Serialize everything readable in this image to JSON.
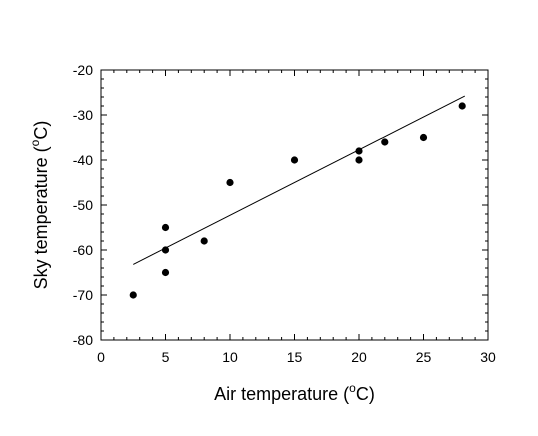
{
  "chart_data": {
    "type": "scatter",
    "title": "",
    "xlabel": "Air temperature (",
    "xlabel_sup": "o",
    "xlabel_unit": "C)",
    "ylabel": "Sky temperature (",
    "ylabel_sup": "o",
    "ylabel_unit": "C)",
    "xlim": [
      0,
      30
    ],
    "ylim": [
      -80,
      -20
    ],
    "x_ticks": [
      0,
      5,
      10,
      15,
      20,
      25,
      30
    ],
    "y_ticks": [
      -80,
      -70,
      -60,
      -50,
      -40,
      -30,
      -20
    ],
    "grid": false,
    "series": [
      {
        "points": [
          {
            "x": 2.5,
            "y": -70
          },
          {
            "x": 5,
            "y": -55
          },
          {
            "x": 5,
            "y": -60
          },
          {
            "x": 5,
            "y": -65
          },
          {
            "x": 8,
            "y": -58
          },
          {
            "x": 10,
            "y": -45
          },
          {
            "x": 15,
            "y": -40
          },
          {
            "x": 20,
            "y": -38
          },
          {
            "x": 20,
            "y": -40
          },
          {
            "x": 22,
            "y": -36
          },
          {
            "x": 25,
            "y": -35
          },
          {
            "x": 28,
            "y": -28
          }
        ],
        "color": "#000000"
      }
    ],
    "trend_line": {
      "x": [
        2.5,
        28.2
      ],
      "y": [
        -63.2,
        -25.8
      ],
      "color": "#000000"
    }
  }
}
